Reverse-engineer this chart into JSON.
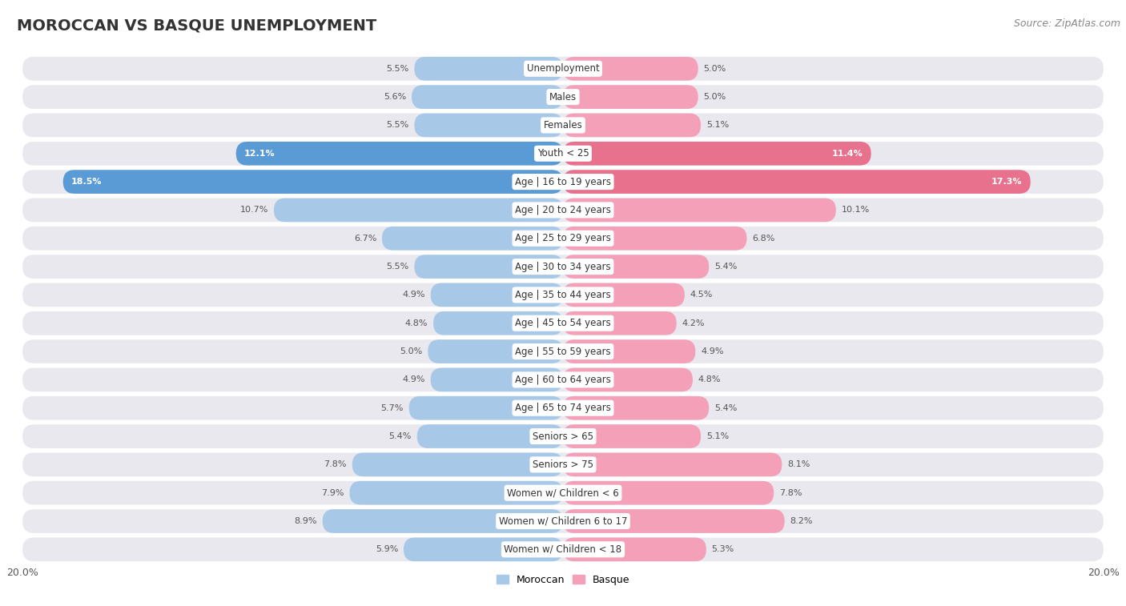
{
  "title": "MOROCCAN VS BASQUE UNEMPLOYMENT",
  "source": "Source: ZipAtlas.com",
  "categories": [
    "Unemployment",
    "Males",
    "Females",
    "Youth < 25",
    "Age | 16 to 19 years",
    "Age | 20 to 24 years",
    "Age | 25 to 29 years",
    "Age | 30 to 34 years",
    "Age | 35 to 44 years",
    "Age | 45 to 54 years",
    "Age | 55 to 59 years",
    "Age | 60 to 64 years",
    "Age | 65 to 74 years",
    "Seniors > 65",
    "Seniors > 75",
    "Women w/ Children < 6",
    "Women w/ Children 6 to 17",
    "Women w/ Children < 18"
  ],
  "moroccan": [
    5.5,
    5.6,
    5.5,
    12.1,
    18.5,
    10.7,
    6.7,
    5.5,
    4.9,
    4.8,
    5.0,
    4.9,
    5.7,
    5.4,
    7.8,
    7.9,
    8.9,
    5.9
  ],
  "basque": [
    5.0,
    5.0,
    5.1,
    11.4,
    17.3,
    10.1,
    6.8,
    5.4,
    4.5,
    4.2,
    4.9,
    4.8,
    5.4,
    5.1,
    8.1,
    7.8,
    8.2,
    5.3
  ],
  "moroccan_color": "#a8c8e8",
  "basque_color": "#f4a0b8",
  "moroccan_color_highlight": "#5b9bd5",
  "basque_color_highlight": "#e8718d",
  "highlight_rows": [
    3,
    4
  ],
  "max_val": 20.0,
  "bg_color": "#ffffff",
  "row_bg_color": "#e8e8ee",
  "row_sep_color": "#ffffff",
  "legend_moroccan": "Moroccan",
  "legend_basque": "Basque",
  "title_fontsize": 14,
  "source_fontsize": 9,
  "label_fontsize": 8.5,
  "value_fontsize": 8.0,
  "axis_label_fontsize": 9
}
